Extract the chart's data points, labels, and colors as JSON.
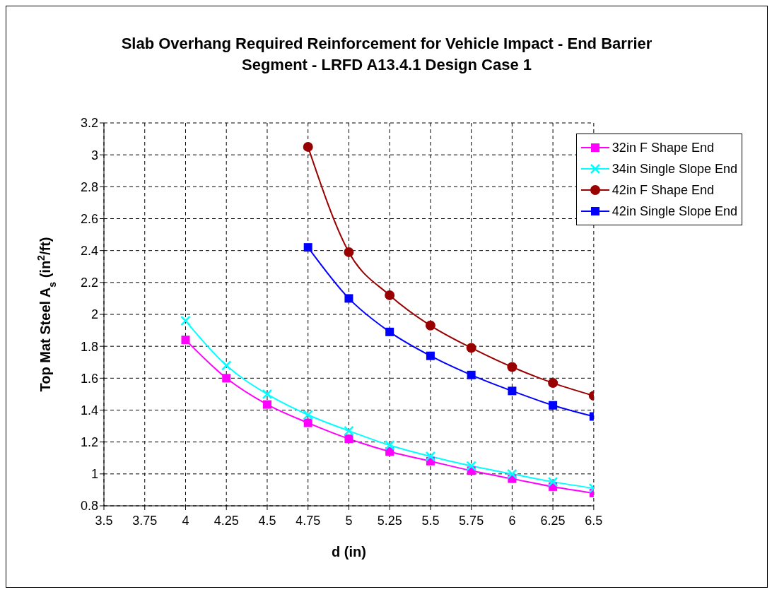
{
  "chart_data": {
    "type": "line",
    "title": "Slab Overhang Required Reinforcement for Vehicle Impact - End Barrier Segment - LRFD A13.4.1 Design Case 1",
    "xlabel": "d (in)",
    "ylabel": "Top Mat Steel A$_{s}$ (in$^{2}$/ft)",
    "series": [
      {
        "name": "32in F Shape End",
        "color": "#ff00ff",
        "marker": "square",
        "x": [
          4,
          4.25,
          4.5,
          4.75,
          5,
          5.25,
          5.5,
          5.75,
          6,
          6.25,
          6.5
        ],
        "values": [
          1.84,
          1.6,
          1.435,
          1.32,
          1.22,
          1.14,
          1.08,
          1.02,
          0.97,
          0.92,
          0.88
        ]
      },
      {
        "name": "34in Single Slope End",
        "color": "#00ffff",
        "marker": "cross",
        "x": [
          4,
          4.25,
          4.5,
          4.75,
          5,
          5.25,
          5.5,
          5.75,
          6,
          6.25,
          6.5
        ],
        "values": [
          1.96,
          1.68,
          1.5,
          1.37,
          1.27,
          1.18,
          1.11,
          1.05,
          1.0,
          0.95,
          0.91
        ]
      },
      {
        "name": "42in F Shape End",
        "color": "#990000",
        "marker": "circle",
        "x": [
          4.75,
          5,
          5.25,
          5.5,
          5.75,
          6,
          6.25,
          6.5
        ],
        "values": [
          3.05,
          2.39,
          2.12,
          1.93,
          1.79,
          1.67,
          1.57,
          1.49
        ]
      },
      {
        "name": "42in Single Slope End",
        "color": "#0000ff",
        "marker": "square",
        "x": [
          4.75,
          5,
          5.25,
          5.5,
          5.75,
          6,
          6.25,
          6.5
        ],
        "values": [
          2.42,
          2.1,
          1.89,
          1.74,
          1.62,
          1.52,
          1.43,
          1.36
        ]
      }
    ],
    "xlim": [
      3.5,
      6.5
    ],
    "xticks": [
      3.5,
      3.75,
      4,
      4.25,
      4.5,
      4.75,
      5,
      5.25,
      5.5,
      5.75,
      6,
      6.25,
      6.5
    ],
    "ylim": [
      0.8,
      3.2
    ],
    "yticks": [
      0.8,
      1,
      1.2,
      1.4,
      1.6,
      1.8,
      2,
      2.2,
      2.4,
      2.6,
      2.8,
      3,
      3.2
    ],
    "grid": true,
    "legend": "top right",
    "line_style": "solid"
  }
}
